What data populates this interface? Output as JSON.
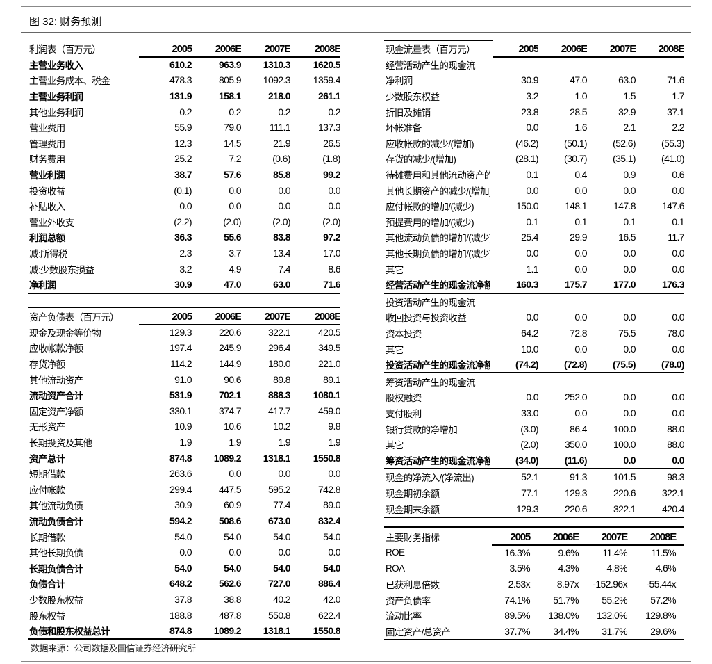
{
  "figure": {
    "label": "图 32:",
    "title": "财务预测"
  },
  "source": "数据来源：公司数据及国信证券经济研究所",
  "tables": {
    "income": {
      "title": "利润表（百万元）",
      "columns": [
        "2005",
        "2006E",
        "2007E",
        "2008E"
      ],
      "rows": [
        {
          "label": "主营业务收入",
          "values": [
            "610.2",
            "963.9",
            "1310.3",
            "1620.5"
          ],
          "bold": true
        },
        {
          "label": "主营业务成本、税金",
          "values": [
            "478.3",
            "805.9",
            "1092.3",
            "1359.4"
          ],
          "bold": false
        },
        {
          "label": "主营业务利润",
          "values": [
            "131.9",
            "158.1",
            "218.0",
            "261.1"
          ],
          "bold": true
        },
        {
          "label": "其他业务利润",
          "values": [
            "0.2",
            "0.2",
            "0.2",
            "0.2"
          ],
          "bold": false
        },
        {
          "label": "营业费用",
          "values": [
            "55.9",
            "79.0",
            "111.1",
            "137.3"
          ],
          "bold": false
        },
        {
          "label": "管理费用",
          "values": [
            "12.3",
            "14.5",
            "21.9",
            "26.5"
          ],
          "bold": false
        },
        {
          "label": "财务费用",
          "values": [
            "25.2",
            "7.2",
            "(0.6)",
            "(1.8)"
          ],
          "bold": false
        },
        {
          "label": "营业利润",
          "values": [
            "38.7",
            "57.6",
            "85.8",
            "99.2"
          ],
          "bold": true
        },
        {
          "label": "投资收益",
          "values": [
            "(0.1)",
            "0.0",
            "0.0",
            "0.0"
          ],
          "bold": false
        },
        {
          "label": "补贴收入",
          "values": [
            "0.0",
            "0.0",
            "0.0",
            "0.0"
          ],
          "bold": false
        },
        {
          "label": "营业外收支",
          "values": [
            "(2.2)",
            "(2.0)",
            "(2.0)",
            "(2.0)"
          ],
          "bold": false
        },
        {
          "label": "利润总额",
          "values": [
            "36.3",
            "55.6",
            "83.8",
            "97.2"
          ],
          "bold": true
        },
        {
          "label": "减:所得税",
          "values": [
            "2.3",
            "3.7",
            "13.4",
            "17.0"
          ],
          "bold": false
        },
        {
          "label": "减:少数股东损益",
          "values": [
            "3.2",
            "4.9",
            "7.4",
            "8.6"
          ],
          "bold": false
        },
        {
          "label": "净利润",
          "values": [
            "30.9",
            "47.0",
            "63.0",
            "71.6"
          ],
          "bold": true
        }
      ]
    },
    "balance": {
      "title": "资产负债表（百万元）",
      "columns": [
        "2005",
        "2006E",
        "2007E",
        "2008E"
      ],
      "rows": [
        {
          "label": "现金及现金等价物",
          "values": [
            "129.3",
            "220.6",
            "322.1",
            "420.5"
          ],
          "bold": false
        },
        {
          "label": "应收帐款净额",
          "values": [
            "197.4",
            "245.9",
            "296.4",
            "349.5"
          ],
          "bold": false
        },
        {
          "label": "存货净额",
          "values": [
            "114.2",
            "144.9",
            "180.0",
            "221.0"
          ],
          "bold": false
        },
        {
          "label": "其他流动资产",
          "values": [
            "91.0",
            "90.6",
            "89.8",
            "89.1"
          ],
          "bold": false
        },
        {
          "label": "流动资产合计",
          "values": [
            "531.9",
            "702.1",
            "888.3",
            "1080.1"
          ],
          "bold": true
        },
        {
          "label": "固定资产净额",
          "values": [
            "330.1",
            "374.7",
            "417.7",
            "459.0"
          ],
          "bold": false
        },
        {
          "label": "无形资产",
          "values": [
            "10.9",
            "10.6",
            "10.2",
            "9.8"
          ],
          "bold": false
        },
        {
          "label": "长期投资及其他",
          "values": [
            "1.9",
            "1.9",
            "1.9",
            "1.9"
          ],
          "bold": false
        },
        {
          "label": "资产总计",
          "values": [
            "874.8",
            "1089.2",
            "1318.1",
            "1550.8"
          ],
          "bold": true
        },
        {
          "label": "短期借款",
          "values": [
            "263.6",
            "0.0",
            "0.0",
            "0.0"
          ],
          "bold": false
        },
        {
          "label": "应付帐款",
          "values": [
            "299.4",
            "447.5",
            "595.2",
            "742.8"
          ],
          "bold": false
        },
        {
          "label": "其他流动负债",
          "values": [
            "30.9",
            "60.9",
            "77.4",
            "89.0"
          ],
          "bold": false
        },
        {
          "label": "流动负债合计",
          "values": [
            "594.2",
            "508.6",
            "673.0",
            "832.4"
          ],
          "bold": true
        },
        {
          "label": "长期借款",
          "values": [
            "54.0",
            "54.0",
            "54.0",
            "54.0"
          ],
          "bold": false
        },
        {
          "label": "其他长期负债",
          "values": [
            "0.0",
            "0.0",
            "0.0",
            "0.0"
          ],
          "bold": false
        },
        {
          "label": "长期负债合计",
          "values": [
            "54.0",
            "54.0",
            "54.0",
            "54.0"
          ],
          "bold": true
        },
        {
          "label": "负债合计",
          "values": [
            "648.2",
            "562.6",
            "727.0",
            "886.4"
          ],
          "bold": true
        },
        {
          "label": "少数股东权益",
          "values": [
            "37.8",
            "38.8",
            "40.2",
            "42.0"
          ],
          "bold": false
        },
        {
          "label": "股东权益",
          "values": [
            "188.8",
            "487.8",
            "550.8",
            "622.4"
          ],
          "bold": false
        },
        {
          "label": "负债和股东权益总计",
          "values": [
            "874.8",
            "1089.2",
            "1318.1",
            "1550.8"
          ],
          "bold": true
        }
      ]
    },
    "cashflow": {
      "title": "现金流量表（百万元）",
      "columns": [
        "2005",
        "2006E",
        "2007E",
        "2008E"
      ],
      "rows": [
        {
          "label": "经营活动产生的现金流",
          "values": [
            "",
            "",
            "",
            ""
          ],
          "bold": false
        },
        {
          "label": "净利润",
          "values": [
            "30.9",
            "47.0",
            "63.0",
            "71.6"
          ],
          "bold": false
        },
        {
          "label": "少数股东权益",
          "values": [
            "3.2",
            "1.0",
            "1.5",
            "1.7"
          ],
          "bold": false
        },
        {
          "label": "折旧及摊销",
          "values": [
            "23.8",
            "28.5",
            "32.9",
            "37.1"
          ],
          "bold": false
        },
        {
          "label": "坏帐准备",
          "values": [
            "0.0",
            "1.6",
            "2.1",
            "2.2"
          ],
          "bold": false
        },
        {
          "label": "应收帐款的减少/(增加)",
          "values": [
            "(46.2)",
            "(50.1)",
            "(52.6)",
            "(55.3)"
          ],
          "bold": false
        },
        {
          "label": "存货的减少/(增加)",
          "values": [
            "(28.1)",
            "(30.7)",
            "(35.1)",
            "(41.0)"
          ],
          "bold": false
        },
        {
          "label": "待摊费用和其他流动资产的减",
          "values": [
            "0.1",
            "0.4",
            "0.9",
            "0.6"
          ],
          "bold": false
        },
        {
          "label": "其他长期资产的减少/(增加)",
          "values": [
            "0.0",
            "0.0",
            "0.0",
            "0.0"
          ],
          "bold": false
        },
        {
          "label": "应付帐款的增加/(减少)",
          "values": [
            "150.0",
            "148.1",
            "147.8",
            "147.6"
          ],
          "bold": false
        },
        {
          "label": "预提费用的增加/(减少)",
          "values": [
            "0.1",
            "0.1",
            "0.1",
            "0.1"
          ],
          "bold": false
        },
        {
          "label": "其他流动负债的增加/(减少)",
          "values": [
            "25.4",
            "29.9",
            "16.5",
            "11.7"
          ],
          "bold": false
        },
        {
          "label": "其他长期负债的增加/(减少)",
          "values": [
            "0.0",
            "0.0",
            "0.0",
            "0.0"
          ],
          "bold": false
        },
        {
          "label": "其它",
          "values": [
            "1.1",
            "0.0",
            "0.0",
            "0.0"
          ],
          "bold": false
        },
        {
          "label": "经营活动产生的现金流净额",
          "values": [
            "160.3",
            "175.7",
            "177.0",
            "176.3"
          ],
          "bold": true
        },
        {
          "label": "投资活动产生的现金流",
          "values": [
            "",
            "",
            "",
            ""
          ],
          "bold": false
        },
        {
          "label": "收回投资与投资收益",
          "values": [
            "0.0",
            "0.0",
            "0.0",
            "0.0"
          ],
          "bold": false
        },
        {
          "label": "资本投资",
          "values": [
            "64.2",
            "72.8",
            "75.5",
            "78.0"
          ],
          "bold": false
        },
        {
          "label": "其它",
          "values": [
            "10.0",
            "0.0",
            "0.0",
            "0.0"
          ],
          "bold": false
        },
        {
          "label": "投资活动产生的现金流净额",
          "values": [
            "(74.2)",
            "(72.8)",
            "(75.5)",
            "(78.0)"
          ],
          "bold": true
        },
        {
          "label": "筹资活动产生的现金流",
          "values": [
            "",
            "",
            "",
            ""
          ],
          "bold": false
        },
        {
          "label": "股权融资",
          "values": [
            "0.0",
            "252.0",
            "0.0",
            "0.0"
          ],
          "bold": false
        },
        {
          "label": "支付股利",
          "values": [
            "33.0",
            "0.0",
            "0.0",
            "0.0"
          ],
          "bold": false
        },
        {
          "label": "银行贷款的净增加",
          "values": [
            "(3.0)",
            "86.4",
            "100.0",
            "88.0"
          ],
          "bold": false
        },
        {
          "label": "其它",
          "values": [
            "(2.0)",
            "350.0",
            "100.0",
            "88.0"
          ],
          "bold": false
        },
        {
          "label": "筹资活动产生的现金流净额",
          "values": [
            "(34.0)",
            "(11.6)",
            "0.0",
            "0.0"
          ],
          "bold": true
        },
        {
          "label": "现金的净流入/(净流出)",
          "values": [
            "52.1",
            "91.3",
            "101.5",
            "98.3"
          ],
          "bold": false
        },
        {
          "label": "现金期初余额",
          "values": [
            "77.1",
            "129.3",
            "220.6",
            "322.1"
          ],
          "bold": false
        },
        {
          "label": "现金期末余额",
          "values": [
            "129.3",
            "220.6",
            "322.1",
            "420.4"
          ],
          "bold": false
        }
      ]
    },
    "ratios": {
      "title": "主要财务指标",
      "columns": [
        "2005",
        "2006E",
        "2007E",
        "2008E"
      ],
      "rows": [
        {
          "label": "ROE",
          "values": [
            "16.3%",
            "9.6%",
            "11.4%",
            "11.5%"
          ],
          "bold": false
        },
        {
          "label": "ROA",
          "values": [
            "3.5%",
            "4.3%",
            "4.8%",
            "4.6%"
          ],
          "bold": false
        },
        {
          "label": "已获利息倍数",
          "values": [
            "2.53x",
            "8.97x",
            "-152.96x",
            "-55.44x"
          ],
          "bold": false
        },
        {
          "label": "资产负债率",
          "values": [
            "74.1%",
            "51.7%",
            "55.2%",
            "57.2%"
          ],
          "bold": false
        },
        {
          "label": "流动比率",
          "values": [
            "89.5%",
            "138.0%",
            "132.0%",
            "129.8%"
          ],
          "bold": false
        },
        {
          "label": "固定资产/总资产",
          "values": [
            "37.7%",
            "34.4%",
            "31.7%",
            "29.6%"
          ],
          "bold": false
        }
      ]
    }
  }
}
